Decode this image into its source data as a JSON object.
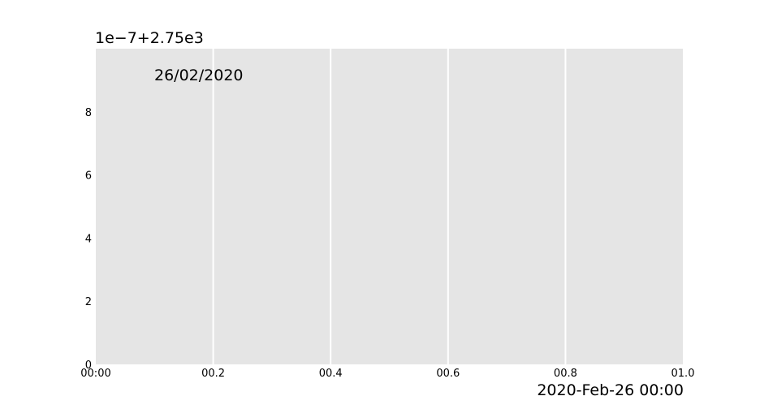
{
  "chart_data": {
    "type": "line",
    "title": "",
    "xlabel": "",
    "ylabel": "",
    "series": [],
    "x_ticks": [
      "00:00",
      "00.2",
      "00.4",
      "00.6",
      "00.8",
      "01.0"
    ],
    "x_tick_values": [
      0,
      0.2,
      0.4,
      0.6,
      0.8,
      1.0
    ],
    "xlim": [
      0,
      1
    ],
    "y_ticks": [
      "0",
      "2",
      "4",
      "6",
      "8"
    ],
    "y_tick_values": [
      0,
      2,
      4,
      6,
      8
    ],
    "ylim": [
      0,
      10
    ],
    "y_offset_label": "1e−7+2.75e3",
    "x_offset_label": "2020-Feb-26 00:00",
    "annotation": "26/02/2020",
    "grid": "x only",
    "plot_background": "#e5e5e5",
    "grid_color": "#ffffff"
  }
}
